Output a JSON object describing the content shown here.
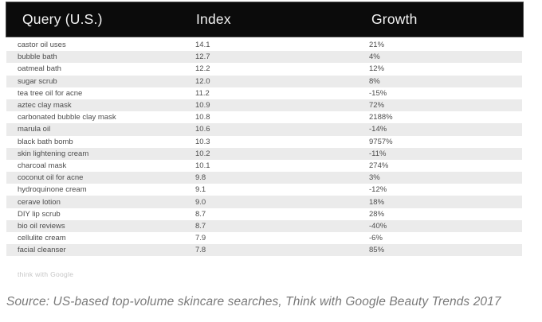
{
  "chart_data": {
    "type": "table",
    "columns": [
      "Query (U.S.)",
      "Index",
      "Growth"
    ],
    "rows": [
      {
        "query": "castor oil uses",
        "index": "14.1",
        "growth": "21%"
      },
      {
        "query": "bubble bath",
        "index": "12.7",
        "growth": "4%"
      },
      {
        "query": "oatmeal bath",
        "index": "12.2",
        "growth": "12%"
      },
      {
        "query": "sugar scrub",
        "index": "12.0",
        "growth": "8%"
      },
      {
        "query": "tea tree oil for acne",
        "index": "11.2",
        "growth": "-15%"
      },
      {
        "query": "aztec clay mask",
        "index": "10.9",
        "growth": "72%"
      },
      {
        "query": "carbonated bubble clay mask",
        "index": "10.8",
        "growth": "2188%"
      },
      {
        "query": "marula oil",
        "index": "10.6",
        "growth": "-14%"
      },
      {
        "query": "black bath bomb",
        "index": "10.3",
        "growth": "9757%"
      },
      {
        "query": "skin lightening cream",
        "index": "10.2",
        "growth": "-11%"
      },
      {
        "query": "charcoal mask",
        "index": "10.1",
        "growth": "274%"
      },
      {
        "query": "coconut oil for acne",
        "index": "9.8",
        "growth": "3%"
      },
      {
        "query": "hydroquinone cream",
        "index": "9.1",
        "growth": "-12%"
      },
      {
        "query": "cerave lotion",
        "index": "9.0",
        "growth": "18%"
      },
      {
        "query": "DIY lip scrub",
        "index": "8.7",
        "growth": "28%"
      },
      {
        "query": "bio oil reviews",
        "index": "8.7",
        "growth": "-40%"
      },
      {
        "query": "cellulite cream",
        "index": "7.9",
        "growth": "-6%"
      },
      {
        "query": "facial cleanser",
        "index": "7.8",
        "growth": "85%"
      }
    ],
    "title": "",
    "layout": {
      "striped": true,
      "stripe_start": "second-row"
    }
  },
  "watermark": "think with Google",
  "caption": "Source: US-based top-volume skincare searches, Think with Google Beauty Trends 2017",
  "colors": {
    "header_bg": "#0b0b0b",
    "header_text": "#f2f2f2",
    "row_stripe": "#ebebeb",
    "row_text": "#4d4d4d",
    "watermark_text": "#c6c6c6",
    "caption_text": "#7a7a7a"
  }
}
